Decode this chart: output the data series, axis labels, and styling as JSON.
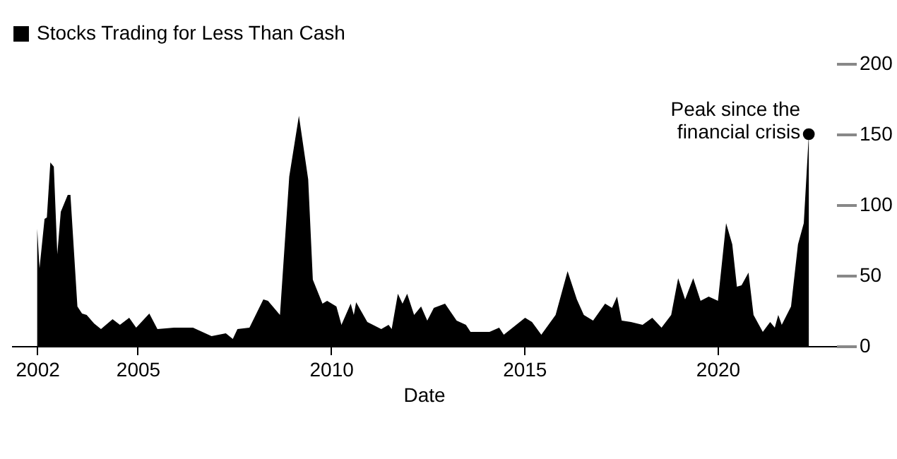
{
  "chart_data": {
    "type": "area",
    "xlabel": "Date",
    "legend": "top left",
    "series": [
      {
        "name": "Stocks Trading for Less Than Cash",
        "color": "#000000",
        "x": [
          2002.4,
          2002.46,
          2002.59,
          2002.65,
          2002.74,
          2002.83,
          2002.92,
          2003.01,
          2003.19,
          2003.26,
          2003.44,
          2003.56,
          2003.68,
          2003.87,
          2004.05,
          2004.35,
          2004.54,
          2004.78,
          2004.96,
          2005.3,
          2005.51,
          2005.94,
          2006.43,
          2006.91,
          2007.28,
          2007.46,
          2007.58,
          2007.89,
          2008.25,
          2008.37,
          2008.68,
          2008.92,
          2009.17,
          2009.41,
          2009.53,
          2009.78,
          2009.9,
          2010.14,
          2010.27,
          2010.51,
          2010.59,
          2010.65,
          2010.94,
          2011.3,
          2011.49,
          2011.57,
          2011.73,
          2011.85,
          2011.97,
          2012.15,
          2012.33,
          2012.49,
          2012.66,
          2012.95,
          2013.25,
          2013.49,
          2013.61,
          2014.1,
          2014.35,
          2014.47,
          2015.02,
          2015.2,
          2015.44,
          2015.81,
          2016.12,
          2016.36,
          2016.54,
          2016.78,
          2017.09,
          2017.27,
          2017.4,
          2017.52,
          2017.76,
          2018.06,
          2018.31,
          2018.55,
          2018.8,
          2018.98,
          2019.16,
          2019.37,
          2019.56,
          2019.77,
          2020.01,
          2020.22,
          2020.38,
          2020.5,
          2020.62,
          2020.8,
          2020.93,
          2021.17,
          2021.36,
          2021.48,
          2021.57,
          2021.66,
          2021.9,
          2022.08,
          2022.23,
          2022.36
        ],
        "values": [
          83,
          55,
          90,
          91,
          130,
          127,
          65,
          95,
          107,
          107,
          28,
          23,
          22,
          16,
          12,
          19,
          15,
          20,
          13,
          23,
          12,
          13,
          13,
          7,
          9,
          5,
          12,
          13,
          33,
          32,
          22,
          120,
          163,
          118,
          47,
          30,
          32,
          28,
          15,
          30,
          22,
          31,
          17,
          12,
          15,
          12,
          37,
          30,
          37,
          22,
          28,
          18,
          27,
          30,
          18,
          15,
          10,
          10,
          13,
          8,
          20,
          17,
          8,
          22,
          53,
          33,
          22,
          18,
          30,
          27,
          35,
          18,
          17,
          15,
          20,
          13,
          22,
          48,
          33,
          48,
          32,
          35,
          32,
          87,
          72,
          42,
          43,
          52,
          22,
          10,
          17,
          13,
          22,
          15,
          28,
          72,
          87,
          150
        ]
      }
    ],
    "xlim": [
      2001.73,
      2023.07
    ],
    "xticks": [
      {
        "value": 2002.4,
        "label": "2002"
      },
      2005,
      2010,
      2015,
      2020
    ],
    "ylim": [
      0,
      200
    ],
    "yticks": [
      0,
      50,
      100,
      150,
      200
    ],
    "annotations": [
      {
        "text": "Peak since the financial crisis",
        "x": 2022.36,
        "y": 150
      }
    ]
  }
}
